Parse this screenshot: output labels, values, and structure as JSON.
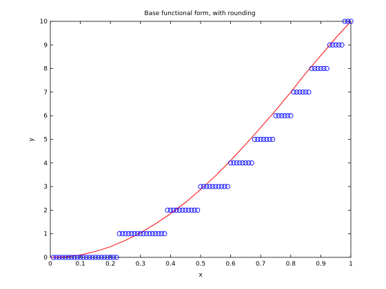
{
  "chart_data": {
    "type": "scatter",
    "title": "Base functional form, with rounding",
    "xlabel": "x",
    "ylabel": "y",
    "xlim": [
      0,
      1
    ],
    "ylim": [
      0,
      10
    ],
    "xticks": [
      "0",
      "0.1",
      "0.2",
      "0.3",
      "0.4",
      "0.5",
      "0.6",
      "0.7",
      "0.8",
      "0.9",
      "1"
    ],
    "yticks": [
      "0",
      "1",
      "2",
      "3",
      "4",
      "5",
      "6",
      "7",
      "8",
      "9",
      "10"
    ],
    "grid": false,
    "colors": {
      "markers": "#0000ff",
      "curve": "#ff0000",
      "axes": "#000000"
    },
    "series": [
      {
        "kind": "markers",
        "points": [
          [
            0.01,
            0
          ],
          [
            0.02,
            0
          ],
          [
            0.03,
            0
          ],
          [
            0.04,
            0
          ],
          [
            0.05,
            0
          ],
          [
            0.06,
            0
          ],
          [
            0.07,
            0
          ],
          [
            0.08,
            0
          ],
          [
            0.09,
            0
          ],
          [
            0.1,
            0
          ],
          [
            0.11,
            0
          ],
          [
            0.12,
            0
          ],
          [
            0.13,
            0
          ],
          [
            0.14,
            0
          ],
          [
            0.15,
            0
          ],
          [
            0.16,
            0
          ],
          [
            0.17,
            0
          ],
          [
            0.18,
            0
          ],
          [
            0.19,
            0
          ],
          [
            0.2,
            0
          ],
          [
            0.21,
            0
          ],
          [
            0.22,
            0
          ],
          [
            0.23,
            1
          ],
          [
            0.24,
            1
          ],
          [
            0.25,
            1
          ],
          [
            0.26,
            1
          ],
          [
            0.27,
            1
          ],
          [
            0.28,
            1
          ],
          [
            0.29,
            1
          ],
          [
            0.3,
            1
          ],
          [
            0.31,
            1
          ],
          [
            0.32,
            1
          ],
          [
            0.33,
            1
          ],
          [
            0.34,
            1
          ],
          [
            0.35,
            1
          ],
          [
            0.36,
            1
          ],
          [
            0.37,
            1
          ],
          [
            0.38,
            1
          ],
          [
            0.39,
            2
          ],
          [
            0.4,
            2
          ],
          [
            0.41,
            2
          ],
          [
            0.42,
            2
          ],
          [
            0.43,
            2
          ],
          [
            0.44,
            2
          ],
          [
            0.45,
            2
          ],
          [
            0.46,
            2
          ],
          [
            0.47,
            2
          ],
          [
            0.48,
            2
          ],
          [
            0.49,
            2
          ],
          [
            0.5,
            3
          ],
          [
            0.51,
            3
          ],
          [
            0.52,
            3
          ],
          [
            0.53,
            3
          ],
          [
            0.54,
            3
          ],
          [
            0.55,
            3
          ],
          [
            0.56,
            3
          ],
          [
            0.57,
            3
          ],
          [
            0.58,
            3
          ],
          [
            0.59,
            3
          ],
          [
            0.6,
            4
          ],
          [
            0.61,
            4
          ],
          [
            0.62,
            4
          ],
          [
            0.63,
            4
          ],
          [
            0.64,
            4
          ],
          [
            0.65,
            4
          ],
          [
            0.66,
            4
          ],
          [
            0.67,
            4
          ],
          [
            0.68,
            5
          ],
          [
            0.69,
            5
          ],
          [
            0.7,
            5
          ],
          [
            0.71,
            5
          ],
          [
            0.72,
            5
          ],
          [
            0.73,
            5
          ],
          [
            0.74,
            5
          ],
          [
            0.75,
            6
          ],
          [
            0.76,
            6
          ],
          [
            0.77,
            6
          ],
          [
            0.78,
            6
          ],
          [
            0.79,
            6
          ],
          [
            0.8,
            6
          ],
          [
            0.81,
            7
          ],
          [
            0.82,
            7
          ],
          [
            0.83,
            7
          ],
          [
            0.84,
            7
          ],
          [
            0.85,
            7
          ],
          [
            0.86,
            7
          ],
          [
            0.87,
            8
          ],
          [
            0.88,
            8
          ],
          [
            0.89,
            8
          ],
          [
            0.9,
            8
          ],
          [
            0.91,
            8
          ],
          [
            0.92,
            8
          ],
          [
            0.93,
            9
          ],
          [
            0.94,
            9
          ],
          [
            0.95,
            9
          ],
          [
            0.96,
            9
          ],
          [
            0.97,
            9
          ],
          [
            0.98,
            10
          ],
          [
            0.99,
            10
          ],
          [
            1.0,
            10
          ]
        ]
      },
      {
        "kind": "line",
        "points": [
          [
            0.0,
            0
          ],
          [
            0.05,
            0.02
          ],
          [
            0.1,
            0.1
          ],
          [
            0.15,
            0.25
          ],
          [
            0.2,
            0.45
          ],
          [
            0.25,
            0.72
          ],
          [
            0.3,
            1.04
          ],
          [
            0.35,
            1.42
          ],
          [
            0.4,
            1.85
          ],
          [
            0.45,
            2.33
          ],
          [
            0.5,
            2.87
          ],
          [
            0.55,
            3.46
          ],
          [
            0.6,
            4.1
          ],
          [
            0.65,
            4.79
          ],
          [
            0.7,
            5.5
          ],
          [
            0.75,
            6.23
          ],
          [
            0.8,
            7.0
          ],
          [
            0.85,
            7.8
          ],
          [
            0.9,
            8.55
          ],
          [
            0.95,
            9.3
          ],
          [
            1.0,
            10
          ]
        ]
      }
    ]
  }
}
